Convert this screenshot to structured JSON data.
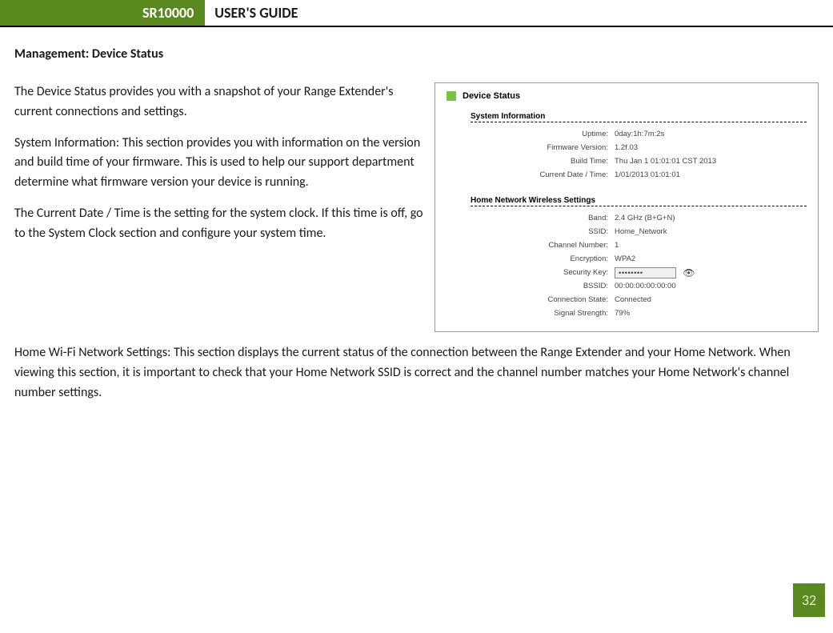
{
  "header": {
    "model": "SR10000",
    "title": "USER'S GUIDE",
    "accent_color": "#5a8a1f"
  },
  "section_title": "Management: Device Status",
  "paragraphs": {
    "p1": "The Device Status provides you with a snapshot of your Range Extender's current connections and settings.",
    "p2": "System Information: This section provides you with information on the version and build time of your firmware.  This is used to help our support department determine what firmware version your device is running.",
    "p3": "The Current Date / Time is the setting for the system clock.  If this time is off, go to the System Clock section and configure your system time.",
    "p4": "Home Wi-Fi Network Settings: This section displays the current status of the connection between the Range Extender and your Home Network. When viewing this section, it is important to check that your Home Network SSID is correct and the channel number matches your Home Network's channel number settings."
  },
  "figure": {
    "title": "Device Status",
    "square_color": "#7cc142",
    "border_color": "#9a9a9a",
    "sections": {
      "sys": {
        "heading": "System Information",
        "rows": {
          "uptime": {
            "k": "Uptime:",
            "v": "0day:1h:7m:2s"
          },
          "fw": {
            "k": "Firmware Version:",
            "v": "1.2f.03"
          },
          "build": {
            "k": "Build Time:",
            "v": "Thu Jan 1 01:01:01 CST 2013"
          },
          "date": {
            "k": "Current Date / Time:",
            "v": "1/01/2013 01:01:01"
          }
        }
      },
      "home": {
        "heading": "Home Network Wireless Settings",
        "rows": {
          "band": {
            "k": "Band:",
            "v": "2.4 GHz (B+G+N)"
          },
          "ssid": {
            "k": "SSID:",
            "v": "Home_Network"
          },
          "chan": {
            "k": "Channel Number:",
            "v": "1"
          },
          "enc": {
            "k": "Encryption:",
            "v": "WPA2"
          },
          "key": {
            "k": "Security Key:",
            "v": "••••••••"
          },
          "bssid": {
            "k": "BSSID:",
            "v": "00:00:00:00:00:00"
          },
          "conn": {
            "k": "Connection State:",
            "v": "Connected"
          },
          "signal": {
            "k": "Signal Strength:",
            "v": "79%"
          }
        }
      }
    }
  },
  "page_number": "32",
  "typography": {
    "body_fontsize": 16,
    "figure_fontsize": 10,
    "line_height": 1.55
  }
}
